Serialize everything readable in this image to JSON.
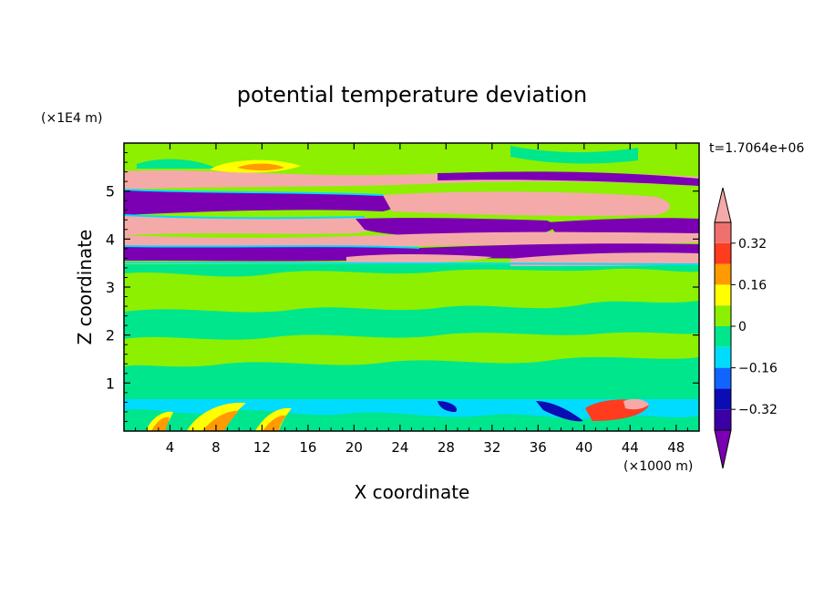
{
  "chart_data": {
    "type": "contour",
    "title": "potential temperature deviation",
    "xlabel": "X coordinate",
    "ylabel": "Z coordinate",
    "x_unit": "(×1000 m)",
    "y_unit": "(×1E4 m)",
    "time_label": "t=1.7064e+06",
    "xlim": [
      0,
      50
    ],
    "ylim": [
      0,
      6
    ],
    "x_ticks": [
      4,
      8,
      12,
      16,
      20,
      24,
      28,
      32,
      36,
      40,
      44,
      48
    ],
    "y_ticks": [
      1,
      2,
      3,
      4,
      5
    ],
    "colorbar": {
      "levels": [
        -0.4,
        -0.32,
        -0.24,
        -0.16,
        -0.08,
        0,
        0.08,
        0.16,
        0.24,
        0.32,
        0.4
      ],
      "tick_labels": [
        "-0.32",
        "-0.16",
        "0",
        "0.16",
        "0.32"
      ],
      "colors": [
        "#7b00b3",
        "#3a00a6",
        "#0c0cb4",
        "#1264ff",
        "#00dcff",
        "#00e68c",
        "#8cf000",
        "#ffff00",
        "#ff9b00",
        "#ff3c1e",
        "#f07070",
        "#f5aaaa"
      ],
      "extend": "both"
    },
    "bands": [
      {
        "z_from": 0,
        "z_to": 0.65,
        "description": "mixed anomalies near surface",
        "dominant": "cyan/green with warm patches"
      },
      {
        "z_from": 0.65,
        "z_to": 3.45,
        "description": "small fluctuations",
        "dominant": "green"
      },
      {
        "z_from": 3.45,
        "z_to": 5.4,
        "description": "alternating strong warm and cold layers",
        "dominant": "pink/purple"
      },
      {
        "z_from": 5.4,
        "z_to": 6.0,
        "description": "weak anomalies",
        "dominant": "green"
      }
    ]
  }
}
